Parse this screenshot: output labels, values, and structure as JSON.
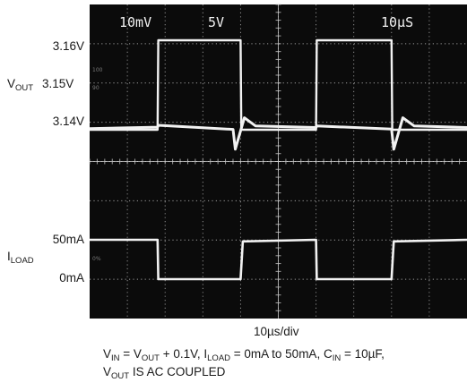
{
  "screen": {
    "background": "#0b0b0b",
    "trace_color": "#f2f2f2",
    "grid_color": "#cfcfcf",
    "top_labels": {
      "ch1_scale": "10mV",
      "ch2_scale": "5V",
      "time_scale": "10μS"
    },
    "faint_marks": {
      "m100": "100",
      "m90": "90",
      "m0": "0%"
    }
  },
  "left_labels": {
    "v316": "3.16V",
    "vout_main": "V",
    "vout_sub": "OUT",
    "v315": "3.15V",
    "v314": "3.14V",
    "i50": "50mA",
    "iload_main": "I",
    "iload_sub": "LOAD",
    "i0": "0mA"
  },
  "xlabel": "10µs/div",
  "caption": {
    "line1": {
      "v_main": "V",
      "v_sub": "IN",
      "t1": " = V",
      "t1_sub": "OUT",
      "t2": " + 0.1V, I",
      "t2_sub": "LOAD",
      "t3": " = 0mA to 50mA, C",
      "t3_sub": "IN",
      "t4": " = 10µF,"
    },
    "line2": {
      "v_main": "V",
      "v_sub": "OUT",
      "rest": " IS AC COUPLED"
    }
  },
  "chart_data": {
    "type": "line",
    "x_unit": "µs",
    "x": [
      0,
      9,
      9.1,
      19,
      19.3,
      20.5,
      22,
      30,
      30.1,
      40,
      40.3,
      41.5,
      43,
      50
    ],
    "series": [
      {
        "name": "",
        "axis": "voltage",
        "values": [
          3.1403,
          3.1407,
          3.1412,
          3.1401,
          3.1348,
          3.1432,
          3.141,
          3.1406,
          3.141,
          3.1402,
          3.1348,
          3.1432,
          3.141,
          3.1406
        ]
      }
    ],
    "load_current": {
      "x": [
        0,
        9,
        9.1,
        20,
        20.3,
        30,
        30.1,
        40,
        40.3,
        50
      ],
      "values": [
        50,
        50,
        0,
        0,
        48,
        50,
        0,
        0,
        48,
        50
      ]
    },
    "gate_signal": {
      "x": [
        0,
        9,
        9.1,
        20,
        20.1,
        30,
        30.1,
        40,
        40.1,
        50
      ],
      "values": [
        0,
        0,
        5,
        5,
        0,
        0,
        5,
        5,
        0,
        0
      ]
    },
    "vout_ticks": [
      "3.16V",
      "3.15V",
      "3.14V"
    ],
    "iload_ticks": [
      "50mA",
      "0mA"
    ],
    "xlim": [
      0,
      50
    ],
    "grid": true
  }
}
